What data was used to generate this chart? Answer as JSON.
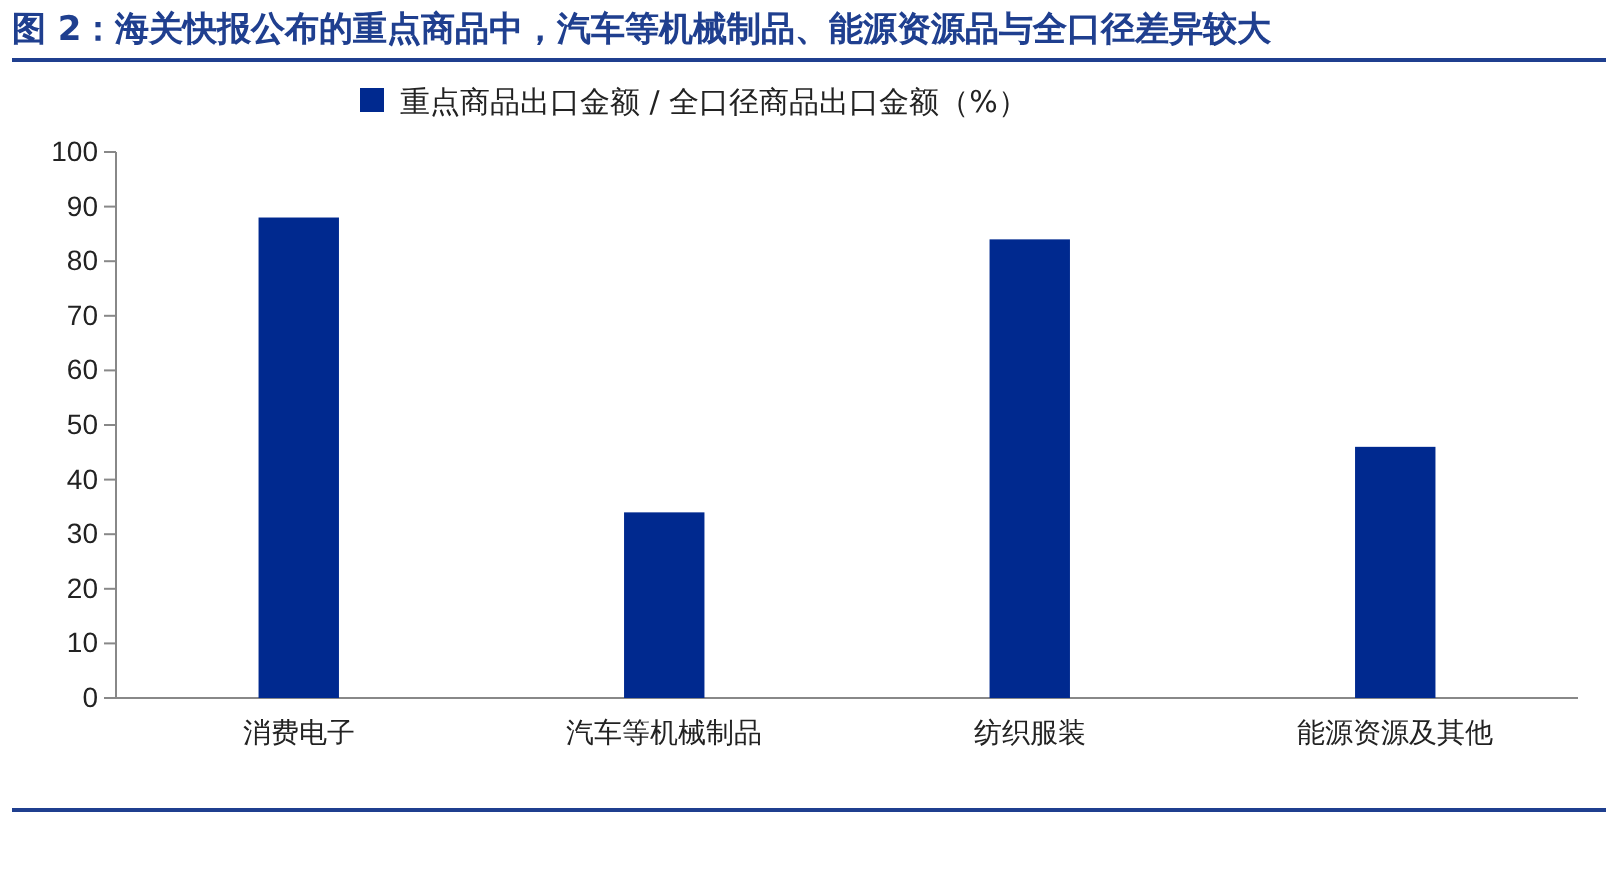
{
  "chart_data": {
    "type": "bar",
    "title": "图 2：海关快报公布的重点商品中，汽车等机械制品、能源资源品与全口径差异较大",
    "categories": [
      "消费电子",
      "汽车等机械制品",
      "纺织服装",
      "能源资源及其他"
    ],
    "series": [
      {
        "name": "重点商品出口金额 / 全口径商品出口金额（%）",
        "color": "#00298f",
        "values": [
          88,
          34,
          84,
          46
        ]
      }
    ],
    "ylim": [
      0,
      100
    ],
    "yticks": [
      0,
      10,
      20,
      30,
      40,
      50,
      60,
      70,
      80,
      90,
      100
    ],
    "grid": false,
    "legend": "top"
  }
}
